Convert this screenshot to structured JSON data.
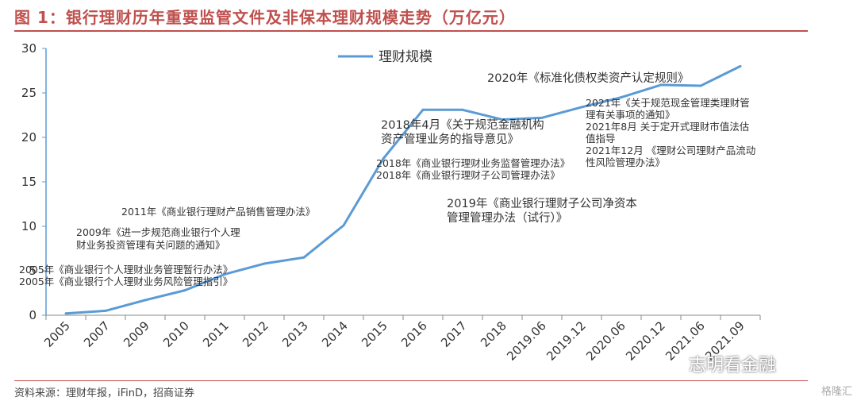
{
  "title": "图 1：银行理财历年重要监管文件及非保本理财规模走势（万亿元）",
  "source": "资料来源：理财年报，iFinD，招商证券",
  "watermark": "格隆汇",
  "wechat_label": "志明看金融",
  "colors": {
    "accent": "#c0504d",
    "line": "#5b9bd5",
    "axis": "#5b9bd5"
  },
  "chart_data": {
    "type": "line",
    "categories": [
      "2005",
      "2007",
      "2009",
      "2010",
      "2011",
      "2012",
      "2013",
      "2014",
      "2015",
      "2016",
      "2017",
      "2018",
      "2019.06",
      "2019.12",
      "2020.06",
      "2020.12",
      "2021.06",
      "2021.09"
    ],
    "series": [
      {
        "name": "理财规模",
        "values": [
          0.2,
          0.5,
          1.7,
          2.8,
          4.6,
          5.8,
          6.5,
          10.1,
          17.6,
          23.1,
          23.1,
          22.0,
          22.2,
          23.4,
          24.5,
          25.9,
          25.8,
          28.0
        ]
      }
    ],
    "ylim": [
      0,
      30
    ],
    "yticks": [
      "0",
      "5",
      "10",
      "15",
      "20",
      "25",
      "30"
    ],
    "legend": "top-center",
    "annotations": [
      {
        "lines": [
          "2005年《商业银行个人理财业务管理暂行办法》",
          "2005年《商业银行个人理财业务风险管理指引》"
        ]
      },
      {
        "lines": [
          "2009年《进一步规范商业银行个人理",
          "财业务投资管理有关问题的通知》"
        ]
      },
      {
        "lines": [
          "2011年《商业银行理财产品销售管理办法》"
        ]
      },
      {
        "lines": [
          "2018年4月《关于规范金融机构",
          "资产管理业务的指导意见》"
        ]
      },
      {
        "lines": [
          "2018年《商业银行理财业务监督管理办法》",
          "2018年《商业银行理财子公司管理办法》"
        ]
      },
      {
        "lines": [
          "2019年《商业银行理财子公司净资本",
          "管理管理办法（试行）》"
        ]
      },
      {
        "lines": [
          "2020年《标准化债权类资产认定规则》"
        ]
      },
      {
        "lines": [
          "2021年《关于规范现金管理类理财管",
          "理有关事项的通知》",
          "2021年8月 关于定开式理财市值法估",
          "值指导",
          "2021年12月 《理财公司理财产品流动",
          "性风险管理办法》"
        ]
      }
    ]
  }
}
